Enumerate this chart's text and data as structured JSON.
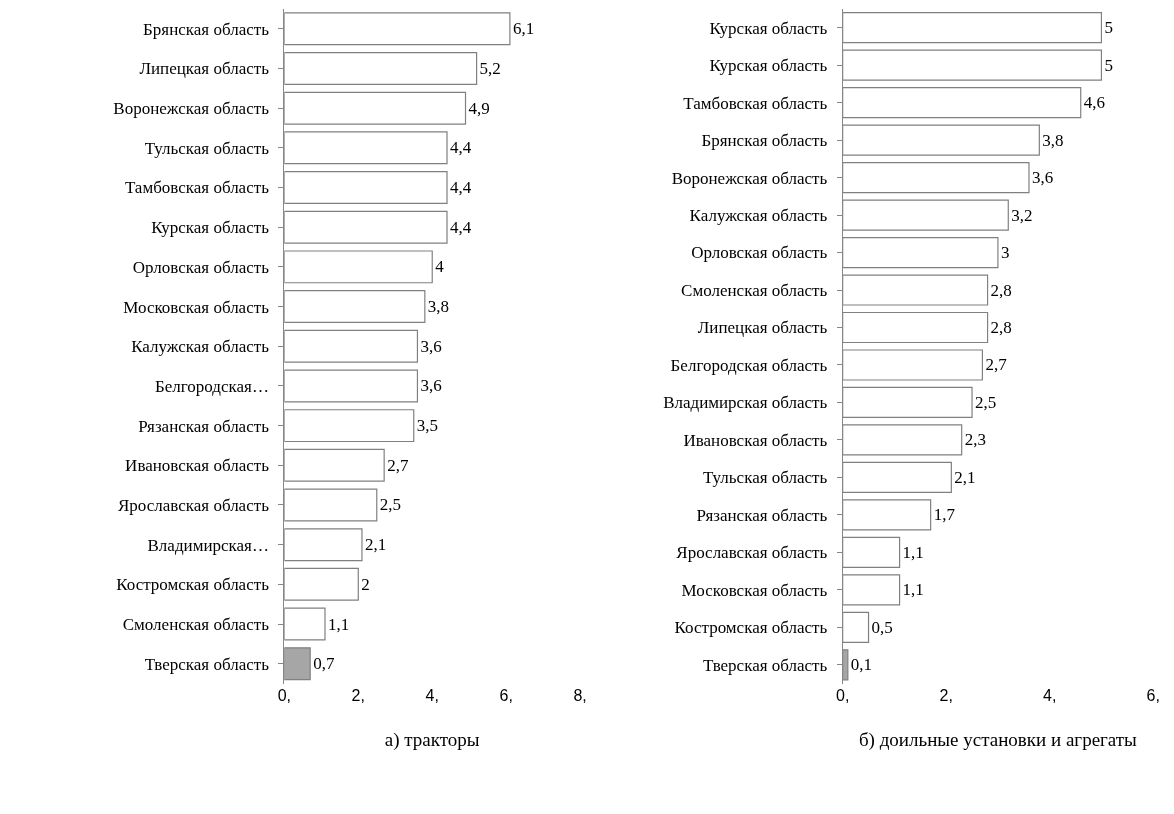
{
  "chart_data": [
    {
      "type": "bar",
      "orientation": "horizontal",
      "xlabel": "а) тракторы",
      "categories": [
        "Брянская область",
        "Липецкая область",
        "Воронежская область",
        "Тульская область",
        "Тамбовская область",
        "Курская область",
        "Орловская область",
        "Московская область",
        "Калужская область",
        "Белгородская…",
        "Рязанская область",
        "Ивановская область",
        "Ярославская область",
        "Владимирская…",
        "Костромская область",
        "Смоленская область",
        "Тверская область"
      ],
      "values": [
        6.1,
        5.2,
        4.9,
        4.4,
        4.4,
        4.4,
        4,
        3.8,
        3.6,
        3.6,
        3.5,
        2.7,
        2.5,
        2.1,
        2,
        1.1,
        0.7
      ],
      "value_labels": [
        "6,1",
        "5,2",
        "4,9",
        "4,4",
        "4,4",
        "4,4",
        "4",
        "3,8",
        "3,6",
        "3,6",
        "3,5",
        "2,7",
        "2,5",
        "2,1",
        "2",
        "1,1",
        "0,7"
      ],
      "colors": [
        "#ffffff",
        "#ffffff",
        "#ffffff",
        "#ffffff",
        "#ffffff",
        "#ffffff",
        "#ffffff",
        "#ffffff",
        "#ffffff",
        "#ffffff",
        "#ffffff",
        "#ffffff",
        "#ffffff",
        "#ffffff",
        "#ffffff",
        "#ffffff",
        "#a6a6a6"
      ],
      "xlim": [
        0,
        8
      ],
      "xticks": [
        {
          "value": 0,
          "label": "0,"
        },
        {
          "value": 2,
          "label": "2,"
        },
        {
          "value": 4,
          "label": "4,"
        },
        {
          "value": 6,
          "label": "6,"
        },
        {
          "value": 8,
          "label": "8,"
        }
      ]
    },
    {
      "type": "bar",
      "orientation": "horizontal",
      "xlabel": "б) доильные установки и агрегаты",
      "categories": [
        "Курская область",
        "Курская область",
        "Тамбовская область",
        "Брянская область",
        "Воронежская область",
        "Калужская область",
        "Орловская область",
        "Смоленская область",
        "Липецкая область",
        "Белгородская область",
        "Владимирская область",
        "Ивановская область",
        "Тульская область",
        "Рязанская область",
        "Ярославская область",
        "Московская область",
        "Костромская область",
        "Тверская область"
      ],
      "values": [
        5,
        5,
        4.6,
        3.8,
        3.6,
        3.2,
        3,
        2.8,
        2.8,
        2.7,
        2.5,
        2.3,
        2.1,
        1.7,
        1.1,
        1.1,
        0.5,
        0.1
      ],
      "value_labels": [
        "5",
        "5",
        "4,6",
        "3,8",
        "3,6",
        "3,2",
        "3",
        "2,8",
        "2,8",
        "2,7",
        "2,5",
        "2,3",
        "2,1",
        "1,7",
        "1,1",
        "1,1",
        "0,5",
        "0,1"
      ],
      "colors": [
        "#ffffff",
        "#ffffff",
        "#ffffff",
        "#ffffff",
        "#ffffff",
        "#ffffff",
        "#ffffff",
        "#ffffff",
        "#ffffff",
        "#ffffff",
        "#ffffff",
        "#ffffff",
        "#ffffff",
        "#ffffff",
        "#ffffff",
        "#ffffff",
        "#ffffff",
        "#a6a6a6"
      ],
      "xlim": [
        0,
        6
      ],
      "xticks": [
        {
          "value": 0,
          "label": "0,"
        },
        {
          "value": 2,
          "label": "2,"
        },
        {
          "value": 4,
          "label": "4,"
        },
        {
          "value": 6,
          "label": "6,"
        }
      ]
    }
  ]
}
